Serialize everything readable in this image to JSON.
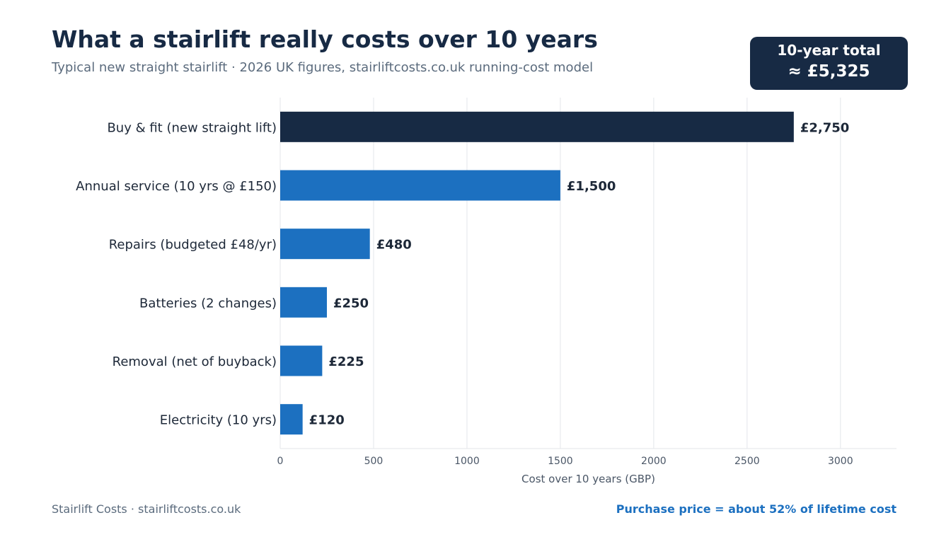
{
  "header": {
    "title": "What a stairlift really costs over 10 years",
    "subtitle": "Typical new straight stairlift  ·  2026 UK figures, stairliftcosts.co.uk running-cost model"
  },
  "total_badge": {
    "label": "10-year total",
    "value": "≈ £5,325"
  },
  "footer": {
    "source": "Stairlift Costs  ·  stairliftcosts.co.uk",
    "note": "Purchase price = about 52% of lifetime cost"
  },
  "colors": {
    "highlight": "#172a44",
    "bar": "#1c70c0",
    "grid": "#e3e6ea",
    "text": "#1d2838",
    "axis_text": "#4a5666"
  },
  "chart_data": {
    "type": "bar",
    "orientation": "horizontal",
    "categories": [
      "Buy & fit (new straight lift)",
      "Annual service (10 yrs @ £150)",
      "Repairs (budgeted £48/yr)",
      "Batteries (2 changes)",
      "Removal (net of buyback)",
      "Electricity (10 yrs)"
    ],
    "values": [
      2750,
      1500,
      480,
      250,
      225,
      120
    ],
    "data_labels": [
      "£2,750",
      "£1,500",
      "£480",
      "£250",
      "£225",
      "£120"
    ],
    "highlight_index": 0,
    "xlabel": "Cost over 10 years (GBP)",
    "ylabel": "",
    "xlim": [
      0,
      3300
    ],
    "xticks": [
      0,
      500,
      1000,
      1500,
      2000,
      2500,
      3000
    ],
    "grid": "vertical"
  }
}
